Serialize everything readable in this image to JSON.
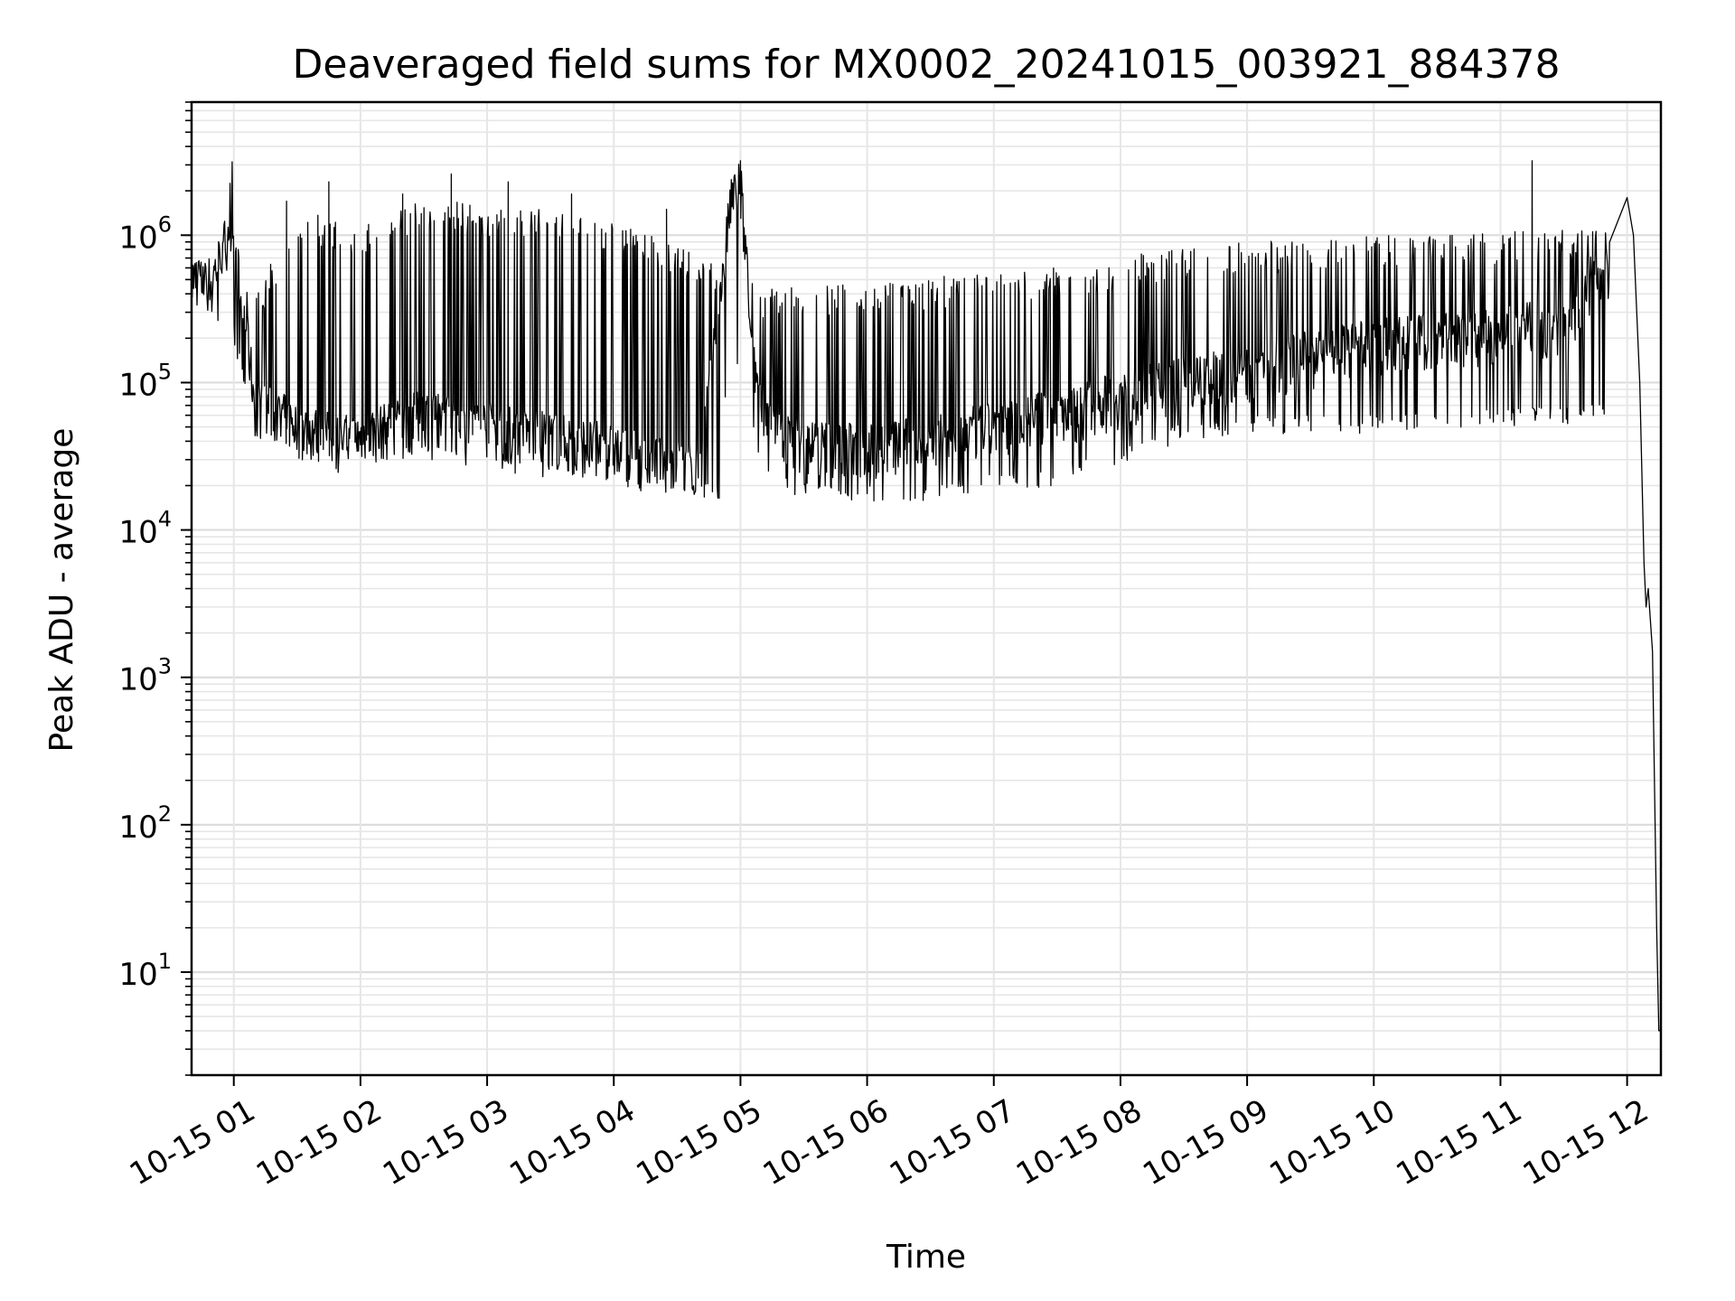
{
  "chart_data": {
    "type": "line",
    "title": "Deaveraged field sums for MX0002_20241015_003921_884378",
    "xlabel": "Time",
    "ylabel": "Peak ADU - average",
    "y_scale": "log",
    "ylim": [
      2,
      8000000
    ],
    "xlim": [
      "2024-10-15 00:40",
      "2024-10-15 12:16"
    ],
    "x_ticks": [
      {
        "label": "10-15 01",
        "time": "2024-10-15 01:00"
      },
      {
        "label": "10-15 02",
        "time": "2024-10-15 02:00"
      },
      {
        "label": "10-15 03",
        "time": "2024-10-15 03:00"
      },
      {
        "label": "10-15 04",
        "time": "2024-10-15 04:00"
      },
      {
        "label": "10-15 05",
        "time": "2024-10-15 05:00"
      },
      {
        "label": "10-15 06",
        "time": "2024-10-15 06:00"
      },
      {
        "label": "10-15 07",
        "time": "2024-10-15 07:00"
      },
      {
        "label": "10-15 08",
        "time": "2024-10-15 08:00"
      },
      {
        "label": "10-15 09",
        "time": "2024-10-15 09:00"
      },
      {
        "label": "10-15 10",
        "time": "2024-10-15 10:00"
      },
      {
        "label": "10-15 11",
        "time": "2024-10-15 11:00"
      },
      {
        "label": "10-15 12",
        "time": "2024-10-15 12:00"
      }
    ],
    "y_ticks": [
      {
        "base": "10",
        "exp": "1",
        "value": 10
      },
      {
        "base": "10",
        "exp": "2",
        "value": 100
      },
      {
        "base": "10",
        "exp": "3",
        "value": 1000
      },
      {
        "base": "10",
        "exp": "4",
        "value": 10000
      },
      {
        "base": "10",
        "exp": "5",
        "value": 100000
      },
      {
        "base": "10",
        "exp": "6",
        "value": 1000000
      }
    ],
    "grid": true,
    "line_color": "#000000",
    "series": [
      {
        "points": [
          [
            "2024-10-15 00:40",
            600000
          ],
          [
            "2024-10-15 00:45",
            450000
          ],
          [
            "2024-10-15 00:50",
            500000
          ],
          [
            "2024-10-15 00:55",
            800000
          ],
          [
            "2024-10-15 00:58",
            1200000
          ],
          [
            "2024-10-15 00:59",
            4000000
          ],
          [
            "2024-10-15 01:00",
            200000
          ],
          [
            "2024-10-15 01:05",
            300000
          ],
          [
            "2024-10-15 01:10",
            70000
          ],
          [
            "2024-10-15 01:20",
            60000
          ],
          [
            "2024-10-15 01:30",
            50000
          ],
          [
            "2024-10-15 01:40",
            45000
          ],
          [
            "2024-10-15 01:50",
            40000
          ],
          [
            "2024-10-15 02:00",
            42000
          ],
          [
            "2024-10-15 02:15",
            50000
          ],
          [
            "2024-10-15 02:30",
            60000
          ],
          [
            "2024-10-15 02:45",
            55000
          ],
          [
            "2024-10-15 03:00",
            50000
          ],
          [
            "2024-10-15 03:15",
            45000
          ],
          [
            "2024-10-15 03:30",
            42000
          ],
          [
            "2024-10-15 03:45",
            38000
          ],
          [
            "2024-10-15 04:00",
            35000
          ],
          [
            "2024-10-15 04:15",
            30000
          ],
          [
            "2024-10-15 04:30",
            28000
          ],
          [
            "2024-10-15 04:40",
            25000
          ],
          [
            "2024-10-15 04:50",
            300000
          ],
          [
            "2024-10-15 04:55",
            1500000
          ],
          [
            "2024-10-15 05:00",
            2500000
          ],
          [
            "2024-10-15 05:05",
            150000
          ],
          [
            "2024-10-15 05:15",
            45000
          ],
          [
            "2024-10-15 05:30",
            38000
          ],
          [
            "2024-10-15 06:00",
            35000
          ],
          [
            "2024-10-15 06:30",
            40000
          ],
          [
            "2024-10-15 07:00",
            50000
          ],
          [
            "2024-10-15 07:30",
            60000
          ],
          [
            "2024-10-15 08:00",
            80000
          ],
          [
            "2024-10-15 08:30",
            100000
          ],
          [
            "2024-10-15 09:00",
            120000
          ],
          [
            "2024-10-15 09:30",
            150000
          ],
          [
            "2024-10-15 10:00",
            180000
          ],
          [
            "2024-10-15 10:30",
            200000
          ],
          [
            "2024-10-15 11:00",
            220000
          ],
          [
            "2024-10-15 11:30",
            250000
          ],
          [
            "2024-10-15 11:50",
            500000
          ],
          [
            "2024-10-15 12:00",
            1800000
          ],
          [
            "2024-10-15 12:03",
            1000000
          ],
          [
            "2024-10-15 12:06",
            100000
          ],
          [
            "2024-10-15 12:08",
            6000
          ],
          [
            "2024-10-15 12:09",
            3000
          ],
          [
            "2024-10-15 12:10",
            4000
          ],
          [
            "2024-10-15 12:12",
            1500
          ],
          [
            "2024-10-15 12:14",
            20
          ],
          [
            "2024-10-15 12:15",
            4
          ],
          [
            "2024-10-15 12:16",
            4
          ]
        ],
        "band_min": [
          [
            "2024-10-15 00:40",
            400000
          ],
          [
            "2024-10-15 01:00",
            200000
          ],
          [
            "2024-10-15 01:10",
            45000
          ],
          [
            "2024-10-15 02:00",
            35000
          ],
          [
            "2024-10-15 03:00",
            28000
          ],
          [
            "2024-10-15 04:00",
            22000
          ],
          [
            "2024-10-15 04:50",
            18000
          ],
          [
            "2024-10-15 04:55",
            200000
          ],
          [
            "2024-10-15 05:10",
            25000
          ],
          [
            "2024-10-15 05:30",
            18000
          ],
          [
            "2024-10-15 06:00",
            17000
          ],
          [
            "2024-10-15 06:30",
            17000
          ],
          [
            "2024-10-15 07:00",
            20000
          ],
          [
            "2024-10-15 07:30",
            22000
          ],
          [
            "2024-10-15 08:00",
            30000
          ],
          [
            "2024-10-15 08:30",
            45000
          ],
          [
            "2024-10-15 09:00",
            50000
          ],
          [
            "2024-10-15 10:00",
            50000
          ],
          [
            "2024-10-15 11:00",
            55000
          ],
          [
            "2024-10-15 11:50",
            60000
          ],
          [
            "2024-10-15 11:52",
            300000
          ]
        ],
        "band_max": [
          [
            "2024-10-15 00:40",
            800000
          ],
          [
            "2024-10-15 01:00",
            1000000
          ],
          [
            "2024-10-15 01:10",
            400000
          ],
          [
            "2024-10-15 01:30",
            1500000
          ],
          [
            "2024-10-15 02:00",
            1200000
          ],
          [
            "2024-10-15 02:30",
            1800000
          ],
          [
            "2024-10-15 03:00",
            1600000
          ],
          [
            "2024-10-15 03:30",
            1500000
          ],
          [
            "2024-10-15 04:00",
            1200000
          ],
          [
            "2024-10-15 04:30",
            900000
          ],
          [
            "2024-10-15 04:50",
            600000
          ],
          [
            "2024-10-15 04:55",
            2500000
          ],
          [
            "2024-10-15 05:10",
            450000
          ],
          [
            "2024-10-15 05:30",
            450000
          ],
          [
            "2024-10-15 06:00",
            500000
          ],
          [
            "2024-10-15 06:30",
            520000
          ],
          [
            "2024-10-15 07:00",
            550000
          ],
          [
            "2024-10-15 07:30",
            620000
          ],
          [
            "2024-10-15 08:00",
            700000
          ],
          [
            "2024-10-15 08:30",
            850000
          ],
          [
            "2024-10-15 09:00",
            900000
          ],
          [
            "2024-10-15 09:30",
            950000
          ],
          [
            "2024-10-15 10:00",
            1000000
          ],
          [
            "2024-10-15 10:30",
            1000000
          ],
          [
            "2024-10-15 11:00",
            1050000
          ],
          [
            "2024-10-15 11:50",
            1100000
          ]
        ],
        "spikes": [
          [
            "2024-10-15 01:25",
            1700000
          ],
          [
            "2024-10-15 01:45",
            2300000
          ],
          [
            "2024-10-15 02:20",
            1900000
          ],
          [
            "2024-10-15 02:43",
            2600000
          ],
          [
            "2024-10-15 03:10",
            2300000
          ],
          [
            "2024-10-15 03:40",
            1900000
          ],
          [
            "2024-10-15 04:25",
            1500000
          ],
          [
            "2024-10-15 05:00",
            3200000
          ],
          [
            "2024-10-15 11:15",
            3200000
          ]
        ]
      }
    ]
  }
}
